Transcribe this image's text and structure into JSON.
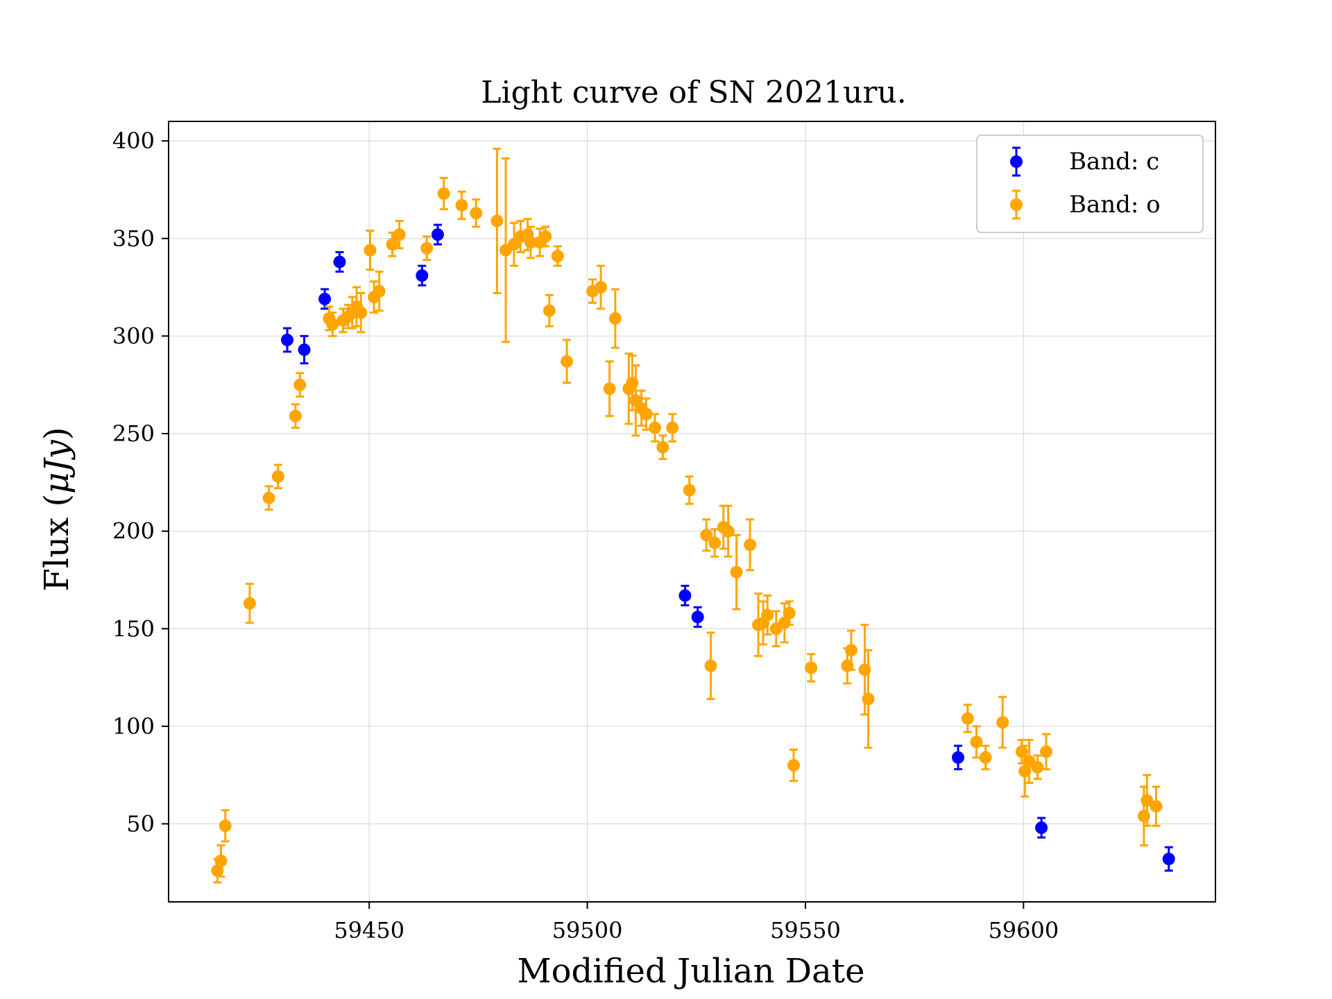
{
  "chart_data": {
    "type": "scatter",
    "title": "Light curve of SN 2021uru.",
    "xlabel": "Modified Julian Date",
    "ylabel": "Flux (μJy)",
    "xlim": [
      59404,
      59644
    ],
    "ylim": [
      10,
      410
    ],
    "xticks": [
      59450,
      59500,
      59550,
      59600
    ],
    "yticks": [
      50,
      100,
      150,
      200,
      250,
      300,
      350,
      400
    ],
    "grid": true,
    "legend": "top-right",
    "series": [
      {
        "name": "Band: c",
        "color": "#0000ff",
        "points": [
          [
            59431.2,
            298,
            6
          ],
          [
            59435.1,
            293,
            7
          ],
          [
            59439.8,
            319,
            5
          ],
          [
            59443.2,
            338,
            5
          ],
          [
            59462.1,
            331,
            5
          ],
          [
            59465.7,
            352,
            5
          ],
          [
            59522.4,
            167,
            5
          ],
          [
            59525.3,
            156,
            5
          ],
          [
            59585.0,
            84,
            6
          ],
          [
            59604.1,
            48,
            5
          ],
          [
            59633.3,
            32,
            6
          ]
        ]
      },
      {
        "name": "Band: o",
        "color": "#ffa500",
        "points": [
          [
            59415.2,
            26,
            6
          ],
          [
            59416.0,
            31,
            8
          ],
          [
            59417.0,
            49,
            8
          ],
          [
            59422.6,
            163,
            10
          ],
          [
            59427.0,
            217,
            6
          ],
          [
            59429.1,
            228,
            6
          ],
          [
            59433.1,
            259,
            6
          ],
          [
            59434.1,
            275,
            6
          ],
          [
            59440.8,
            309,
            6
          ],
          [
            59441.6,
            306,
            6
          ],
          [
            59444.0,
            308,
            6
          ],
          [
            59445.2,
            310,
            6
          ],
          [
            59446.1,
            312,
            8
          ],
          [
            59447.1,
            315,
            10
          ],
          [
            59448.1,
            312,
            10
          ],
          [
            59450.2,
            344,
            10
          ],
          [
            59451.1,
            320,
            8
          ],
          [
            59452.3,
            323,
            10
          ],
          [
            59455.3,
            347,
            6
          ],
          [
            59456.9,
            352,
            7
          ],
          [
            59463.2,
            345,
            6
          ],
          [
            59467.1,
            373,
            8
          ],
          [
            59471.2,
            367,
            7
          ],
          [
            59474.5,
            363,
            7
          ],
          [
            59479.3,
            359,
            37
          ],
          [
            59481.3,
            344,
            47
          ],
          [
            59483.2,
            347,
            11
          ],
          [
            59484.7,
            351,
            8
          ],
          [
            59486.3,
            352,
            8
          ],
          [
            59487.0,
            348,
            8
          ],
          [
            59489.1,
            348,
            7
          ],
          [
            59490.4,
            351,
            5
          ],
          [
            59493.2,
            341,
            5
          ],
          [
            59491.3,
            313,
            8
          ],
          [
            59495.3,
            287,
            11
          ],
          [
            59501.2,
            323,
            6
          ],
          [
            59503.1,
            325,
            11
          ],
          [
            59505.1,
            273,
            14
          ],
          [
            59506.4,
            309,
            15
          ],
          [
            59509.5,
            273,
            18
          ],
          [
            59510.3,
            276,
            14
          ],
          [
            59511.1,
            267,
            18
          ],
          [
            59512.4,
            263,
            9
          ],
          [
            59513.5,
            260,
            8
          ],
          [
            59515.5,
            253,
            7
          ],
          [
            59517.3,
            243,
            6
          ],
          [
            59519.5,
            253,
            7
          ],
          [
            59523.4,
            221,
            7
          ],
          [
            59527.3,
            198,
            8
          ],
          [
            59528.3,
            131,
            17
          ],
          [
            59529.2,
            194,
            7
          ],
          [
            59531.2,
            202,
            11
          ],
          [
            59532.3,
            200,
            13
          ],
          [
            59534.2,
            179,
            19
          ],
          [
            59537.3,
            193,
            13
          ],
          [
            59539.2,
            152,
            16
          ],
          [
            59540.3,
            153,
            11
          ],
          [
            59541.3,
            157,
            10
          ],
          [
            59543.3,
            150,
            9
          ],
          [
            59545.2,
            153,
            10
          ],
          [
            59546.3,
            158,
            6
          ],
          [
            59547.3,
            80,
            8
          ],
          [
            59551.3,
            130,
            7
          ],
          [
            59559.6,
            131,
            9
          ],
          [
            59560.5,
            139,
            10
          ],
          [
            59563.6,
            129,
            23
          ],
          [
            59564.4,
            114,
            25
          ],
          [
            59587.2,
            104,
            7
          ],
          [
            59589.2,
            92,
            8
          ],
          [
            59591.3,
            84,
            6
          ],
          [
            59595.2,
            102,
            13
          ],
          [
            59599.6,
            87,
            6
          ],
          [
            59600.3,
            77,
            13
          ],
          [
            59601.3,
            82,
            11
          ],
          [
            59603.2,
            79,
            6
          ],
          [
            59605.2,
            87,
            9
          ],
          [
            59627.6,
            54,
            15
          ],
          [
            59628.3,
            62,
            13
          ],
          [
            59630.4,
            59,
            10
          ]
        ]
      }
    ]
  }
}
